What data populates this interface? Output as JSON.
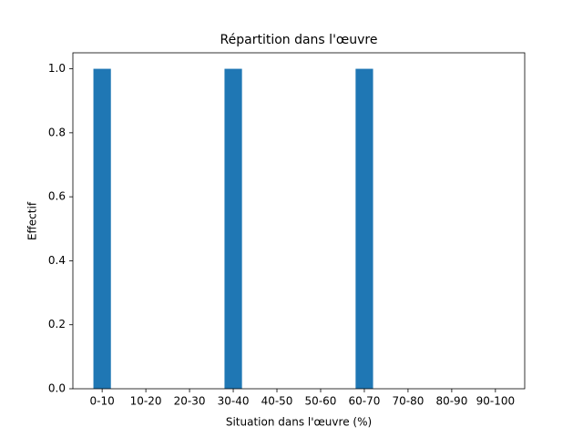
{
  "chart_data": {
    "type": "bar",
    "title": "Répartition dans l'œuvre",
    "x_label": "Situation dans l'œuvre (%)",
    "y_label": "Effectif",
    "categories": [
      "0-10",
      "10-20",
      "20-30",
      "30-40",
      "40-50",
      "50-60",
      "60-70",
      "70-80",
      "80-90",
      "90-100"
    ],
    "values": [
      1,
      0,
      0,
      1,
      0,
      0,
      1,
      0,
      0,
      0
    ],
    "color": "#1f77b4",
    "ylim": [
      0,
      1.05
    ],
    "yticks": [
      {
        "value": 0,
        "label": "0.0"
      },
      0.2,
      0.4,
      0.6,
      0.8,
      {
        "value": 1,
        "label": "1.0"
      }
    ]
  }
}
